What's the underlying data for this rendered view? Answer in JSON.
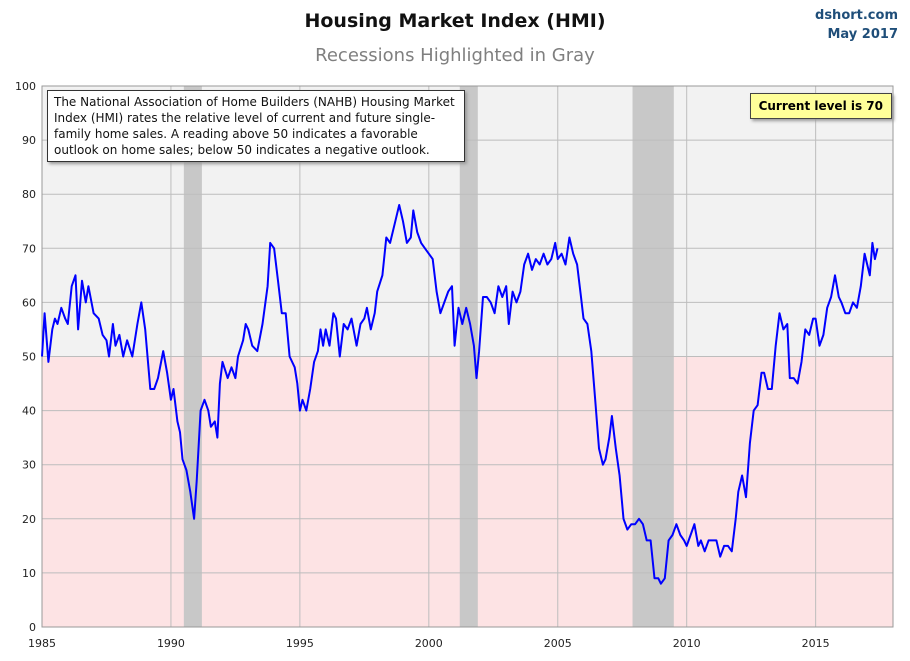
{
  "chart_data": {
    "type": "line",
    "title": "Housing Market Index (HMI)",
    "subtitle": "Recessions Highlighted in Gray",
    "source": "dshort.com",
    "date": "May 2017",
    "note": "The National Association of Home Builders (NAHB) Housing Market Index (HMI) rates the relative level of current and future single-family home sales. A reading above 50 indicates a favorable outlook on home sales; below 50 indicates a negative outlook.",
    "annotation": "Current level is 70",
    "color": "#0000ff",
    "shade_below": 50,
    "recessions": [
      [
        1990.5,
        1991.2
      ],
      [
        2001.2,
        2001.9
      ],
      [
        2007.9,
        2009.5
      ]
    ],
    "xlim": [
      1985,
      2018
    ],
    "ylim": [
      0,
      100
    ],
    "xticks": [
      1985,
      1990,
      1995,
      2000,
      2005,
      2010,
      2015
    ],
    "yticks": [
      0,
      10,
      20,
      30,
      40,
      50,
      60,
      70,
      80,
      90,
      100
    ],
    "grid": true,
    "x": [
      1985.0,
      1985.1,
      1985.25,
      1985.4,
      1985.5,
      1985.6,
      1985.75,
      1985.9,
      1986.0,
      1986.15,
      1986.3,
      1986.4,
      1986.55,
      1986.7,
      1986.8,
      1987.0,
      1987.2,
      1987.35,
      1987.5,
      1987.6,
      1987.75,
      1987.85,
      1988.0,
      1988.15,
      1988.3,
      1988.5,
      1988.7,
      1988.85,
      1989.0,
      1989.2,
      1989.35,
      1989.5,
      1989.7,
      1989.85,
      1990.0,
      1990.1,
      1990.25,
      1990.35,
      1990.45,
      1990.6,
      1990.75,
      1990.9,
      1991.0,
      1991.15,
      1991.3,
      1991.45,
      1991.55,
      1991.7,
      1991.8,
      1991.9,
      1992.0,
      1992.2,
      1992.35,
      1992.5,
      1992.6,
      1992.8,
      1992.9,
      1993.0,
      1993.15,
      1993.35,
      1993.55,
      1993.75,
      1993.85,
      1994.0,
      1994.15,
      1994.3,
      1994.45,
      1994.6,
      1994.8,
      1994.9,
      1995.0,
      1995.1,
      1995.25,
      1995.4,
      1995.55,
      1995.7,
      1995.8,
      1995.9,
      1996.0,
      1996.15,
      1996.3,
      1996.4,
      1996.55,
      1996.7,
      1996.85,
      1997.0,
      1997.2,
      1997.35,
      1997.5,
      1997.6,
      1997.75,
      1997.9,
      1998.0,
      1998.2,
      1998.35,
      1998.5,
      1998.7,
      1998.85,
      1999.0,
      1999.15,
      1999.3,
      1999.4,
      1999.55,
      1999.7,
      1999.85,
      2000.0,
      2000.15,
      2000.3,
      2000.45,
      2000.6,
      2000.75,
      2000.9,
      2001.0,
      2001.15,
      2001.3,
      2001.45,
      2001.6,
      2001.75,
      2001.85,
      2001.95,
      2002.1,
      2002.25,
      2002.4,
      2002.55,
      2002.7,
      2002.85,
      2003.0,
      2003.1,
      2003.25,
      2003.4,
      2003.55,
      2003.7,
      2003.85,
      2004.0,
      2004.15,
      2004.3,
      2004.45,
      2004.6,
      2004.75,
      2004.9,
      2005.0,
      2005.15,
      2005.3,
      2005.45,
      2005.6,
      2005.75,
      2005.9,
      2006.0,
      2006.15,
      2006.3,
      2006.45,
      2006.6,
      2006.75,
      2006.85,
      2007.0,
      2007.1,
      2007.25,
      2007.4,
      2007.55,
      2007.7,
      2007.85,
      2008.0,
      2008.15,
      2008.3,
      2008.45,
      2008.6,
      2008.75,
      2008.9,
      2009.0,
      2009.15,
      2009.3,
      2009.45,
      2009.6,
      2009.75,
      2009.9,
      2010.0,
      2010.15,
      2010.3,
      2010.45,
      2010.55,
      2010.7,
      2010.85,
      2011.0,
      2011.15,
      2011.3,
      2011.45,
      2011.6,
      2011.75,
      2011.9,
      2012.0,
      2012.15,
      2012.3,
      2012.45,
      2012.6,
      2012.75,
      2012.9,
      2013.0,
      2013.15,
      2013.3,
      2013.45,
      2013.6,
      2013.75,
      2013.9,
      2014.0,
      2014.15,
      2014.3,
      2014.45,
      2014.6,
      2014.75,
      2014.9,
      2015.0,
      2015.15,
      2015.3,
      2015.45,
      2015.6,
      2015.75,
      2015.9,
      2016.0,
      2016.15,
      2016.3,
      2016.45,
      2016.6,
      2016.75,
      2016.9,
      2017.0,
      2017.1,
      2017.2,
      2017.3,
      2017.4
    ],
    "values": [
      50,
      58,
      49,
      55,
      57,
      56,
      59,
      57,
      56,
      63,
      65,
      55,
      64,
      60,
      63,
      58,
      57,
      54,
      53,
      50,
      56,
      52,
      54,
      50,
      53,
      50,
      56,
      60,
      55,
      44,
      44,
      46,
      51,
      47,
      42,
      44,
      38,
      36,
      31,
      29,
      25,
      20,
      27,
      40,
      42,
      40,
      37,
      38,
      35,
      45,
      49,
      46,
      48,
      46,
      50,
      53,
      56,
      55,
      52,
      51,
      56,
      63,
      71,
      70,
      64,
      58,
      58,
      50,
      48,
      45,
      40,
      42,
      40,
      44,
      49,
      51,
      55,
      52,
      55,
      52,
      58,
      57,
      50,
      56,
      55,
      57,
      52,
      56,
      57,
      59,
      55,
      58,
      62,
      65,
      72,
      71,
      75,
      78,
      75,
      71,
      72,
      77,
      73,
      71,
      70,
      69,
      68,
      62,
      58,
      60,
      62,
      63,
      52,
      59,
      56,
      59,
      56,
      52,
      46,
      51,
      61,
      61,
      60,
      58,
      63,
      61,
      63,
      56,
      62,
      60,
      62,
      67,
      69,
      66,
      68,
      67,
      69,
      67,
      68,
      71,
      68,
      69,
      67,
      72,
      69,
      67,
      61,
      57,
      56,
      51,
      42,
      33,
      30,
      31,
      35,
      39,
      33,
      28,
      20,
      18,
      19,
      19,
      20,
      19,
      16,
      16,
      9,
      9,
      8,
      9,
      16,
      17,
      19,
      17,
      16,
      15,
      17,
      19,
      15,
      16,
      14,
      16,
      16,
      16,
      13,
      15,
      15,
      14,
      20,
      25,
      28,
      24,
      34,
      40,
      41,
      47,
      47,
      44,
      44,
      52,
      58,
      55,
      56,
      46,
      46,
      45,
      49,
      55,
      54,
      57,
      57,
      52,
      54,
      59,
      61,
      65,
      61,
      60,
      58,
      58,
      60,
      59,
      63,
      69,
      67,
      65,
      71,
      68,
      70
    ]
  }
}
